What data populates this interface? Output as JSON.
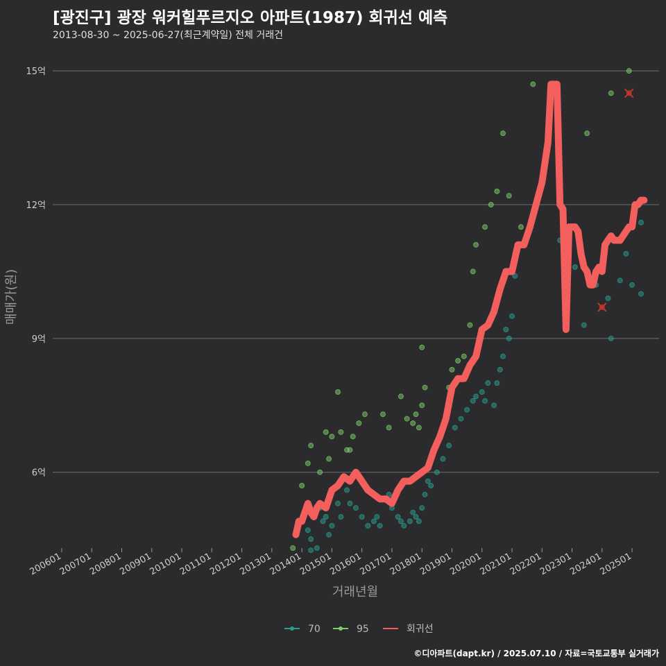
{
  "header": {
    "title": "[광진구] 광장 워커힐푸르지오 아파트(1987) 회귀선 예측",
    "subtitle": "2013-08-30 ~ 2025-06-27(최근계약일) 전체 거래건"
  },
  "footer": {
    "credit": "©디아파트(dapt.kr) / 2025.07.10 / 자료=국토교통부 실거래가"
  },
  "colors": {
    "background": "#2b2a2c",
    "grid": "#707070",
    "series_70": "#2a9d8f",
    "series_95": "#7ccd6a",
    "regression": "#f25f5c",
    "highlight": "#c0392b"
  },
  "chart_data": {
    "type": "scatter",
    "xlabel": "거래년월",
    "ylabel": "매매가(원)",
    "x_unit": "year",
    "xlim": [
      2005.7,
      2025.9
    ],
    "ylim": [
      4.3,
      15.5
    ],
    "x_ticks": [
      {
        "label": "200601",
        "value": 2006.0
      },
      {
        "label": "200701",
        "value": 2007.0
      },
      {
        "label": "200801",
        "value": 2008.0
      },
      {
        "label": "200901",
        "value": 2009.0
      },
      {
        "label": "201001",
        "value": 2010.0
      },
      {
        "label": "201101",
        "value": 2011.0
      },
      {
        "label": "201201",
        "value": 2012.0
      },
      {
        "label": "201301",
        "value": 2013.0
      },
      {
        "label": "201401",
        "value": 2014.0
      },
      {
        "label": "201501",
        "value": 2015.0
      },
      {
        "label": "201601",
        "value": 2016.0
      },
      {
        "label": "201701",
        "value": 2017.0
      },
      {
        "label": "201801",
        "value": 2018.0
      },
      {
        "label": "201901",
        "value": 2019.0
      },
      {
        "label": "202001",
        "value": 2020.0
      },
      {
        "label": "202101",
        "value": 2021.0
      },
      {
        "label": "202201",
        "value": 2022.0
      },
      {
        "label": "202301",
        "value": 2023.0
      },
      {
        "label": "202401",
        "value": 2024.0
      },
      {
        "label": "202501",
        "value": 2025.0
      }
    ],
    "y_ticks": [
      {
        "label": "6억",
        "value": 6
      },
      {
        "label": "9억",
        "value": 9
      },
      {
        "label": "12억",
        "value": 12
      },
      {
        "label": "15억",
        "value": 15
      }
    ],
    "grid": "horizontal",
    "legend_position": "bottom",
    "legend": [
      "70",
      "95",
      "회귀선"
    ],
    "series": [
      {
        "name": "70",
        "kind": "points",
        "points": [
          [
            2013.9,
            4.9
          ],
          [
            2014.2,
            4.7
          ],
          [
            2014.3,
            4.5
          ],
          [
            2014.3,
            4.25
          ],
          [
            2014.5,
            4.3
          ],
          [
            2014.6,
            5.2
          ],
          [
            2014.7,
            4.9
          ],
          [
            2014.8,
            5.0
          ],
          [
            2014.9,
            4.6
          ],
          [
            2015.0,
            4.8
          ],
          [
            2015.2,
            5.3
          ],
          [
            2015.3,
            5.0
          ],
          [
            2015.5,
            5.6
          ],
          [
            2015.6,
            5.3
          ],
          [
            2015.8,
            5.2
          ],
          [
            2016.0,
            5.0
          ],
          [
            2016.2,
            4.8
          ],
          [
            2016.4,
            4.9
          ],
          [
            2016.5,
            5.0
          ],
          [
            2016.6,
            4.8
          ],
          [
            2016.9,
            5.5
          ],
          [
            2017.0,
            5.2
          ],
          [
            2017.2,
            5.0
          ],
          [
            2017.3,
            4.9
          ],
          [
            2017.4,
            4.8
          ],
          [
            2017.6,
            4.9
          ],
          [
            2017.7,
            5.1
          ],
          [
            2017.8,
            5.0
          ],
          [
            2017.9,
            4.9
          ],
          [
            2018.0,
            5.2
          ],
          [
            2018.1,
            5.5
          ],
          [
            2018.2,
            5.8
          ],
          [
            2018.3,
            5.7
          ],
          [
            2018.5,
            6.0
          ],
          [
            2018.7,
            6.3
          ],
          [
            2018.9,
            6.6
          ],
          [
            2019.1,
            7.0
          ],
          [
            2019.3,
            7.2
          ],
          [
            2019.5,
            7.4
          ],
          [
            2019.7,
            7.6
          ],
          [
            2019.8,
            7.7
          ],
          [
            2020.0,
            7.8
          ],
          [
            2020.1,
            7.6
          ],
          [
            2020.2,
            8.0
          ],
          [
            2020.4,
            7.5
          ],
          [
            2020.5,
            8.0
          ],
          [
            2020.6,
            8.3
          ],
          [
            2020.7,
            8.6
          ],
          [
            2020.8,
            9.2
          ],
          [
            2020.9,
            9.0
          ],
          [
            2021.0,
            9.5
          ],
          [
            2021.1,
            10.4
          ],
          [
            2022.6,
            11.2
          ],
          [
            2023.1,
            10.6
          ],
          [
            2023.4,
            9.3
          ],
          [
            2023.8,
            10.2
          ],
          [
            2024.2,
            9.9
          ],
          [
            2024.3,
            9.0
          ],
          [
            2024.6,
            10.3
          ],
          [
            2024.8,
            10.9
          ],
          [
            2025.0,
            10.2
          ],
          [
            2025.3,
            10.0
          ],
          [
            2025.3,
            11.6
          ]
        ]
      },
      {
        "name": "95",
        "kind": "points",
        "points": [
          [
            2013.7,
            4.3
          ],
          [
            2014.0,
            5.7
          ],
          [
            2014.2,
            6.2
          ],
          [
            2014.3,
            6.6
          ],
          [
            2014.6,
            6.0
          ],
          [
            2014.8,
            6.9
          ],
          [
            2014.9,
            6.3
          ],
          [
            2015.0,
            6.8
          ],
          [
            2015.2,
            7.8
          ],
          [
            2015.3,
            6.9
          ],
          [
            2015.5,
            6.5
          ],
          [
            2015.6,
            6.5
          ],
          [
            2015.7,
            6.8
          ],
          [
            2015.9,
            7.1
          ],
          [
            2016.1,
            7.3
          ],
          [
            2016.7,
            7.3
          ],
          [
            2016.9,
            7.0
          ],
          [
            2017.3,
            7.7
          ],
          [
            2017.5,
            7.2
          ],
          [
            2017.7,
            7.1
          ],
          [
            2017.8,
            7.3
          ],
          [
            2017.9,
            7.0
          ],
          [
            2018.0,
            7.5
          ],
          [
            2018.0,
            8.8
          ],
          [
            2018.1,
            7.9
          ],
          [
            2018.9,
            7.9
          ],
          [
            2019.0,
            8.3
          ],
          [
            2019.2,
            8.5
          ],
          [
            2019.4,
            8.6
          ],
          [
            2019.6,
            9.3
          ],
          [
            2019.7,
            10.5
          ],
          [
            2019.8,
            11.1
          ],
          [
            2020.1,
            11.5
          ],
          [
            2020.3,
            12.0
          ],
          [
            2020.5,
            12.3
          ],
          [
            2020.7,
            13.6
          ],
          [
            2020.9,
            12.2
          ],
          [
            2021.3,
            11.5
          ],
          [
            2021.7,
            14.7
          ],
          [
            2023.5,
            13.6
          ],
          [
            2024.3,
            14.5
          ],
          [
            2024.9,
            15.0
          ]
        ]
      },
      {
        "name": "회귀선",
        "kind": "line",
        "points": [
          [
            2013.8,
            4.6
          ],
          [
            2013.9,
            4.9
          ],
          [
            2014.0,
            4.9
          ],
          [
            2014.1,
            5.1
          ],
          [
            2014.2,
            5.3
          ],
          [
            2014.3,
            5.1
          ],
          [
            2014.4,
            5.0
          ],
          [
            2014.5,
            5.2
          ],
          [
            2014.6,
            5.3
          ],
          [
            2014.8,
            5.2
          ],
          [
            2015.0,
            5.6
          ],
          [
            2015.2,
            5.7
          ],
          [
            2015.4,
            5.9
          ],
          [
            2015.6,
            5.8
          ],
          [
            2015.8,
            6.0
          ],
          [
            2016.0,
            5.8
          ],
          [
            2016.2,
            5.6
          ],
          [
            2016.4,
            5.5
          ],
          [
            2016.6,
            5.4
          ],
          [
            2016.8,
            5.4
          ],
          [
            2017.0,
            5.3
          ],
          [
            2017.2,
            5.6
          ],
          [
            2017.4,
            5.8
          ],
          [
            2017.6,
            5.8
          ],
          [
            2017.8,
            5.9
          ],
          [
            2018.0,
            6.0
          ],
          [
            2018.2,
            6.1
          ],
          [
            2018.4,
            6.5
          ],
          [
            2018.6,
            6.8
          ],
          [
            2018.8,
            7.2
          ],
          [
            2019.0,
            7.9
          ],
          [
            2019.2,
            8.1
          ],
          [
            2019.4,
            8.1
          ],
          [
            2019.6,
            8.4
          ],
          [
            2019.8,
            8.6
          ],
          [
            2020.0,
            9.2
          ],
          [
            2020.2,
            9.3
          ],
          [
            2020.4,
            9.6
          ],
          [
            2020.6,
            10.1
          ],
          [
            2020.8,
            10.5
          ],
          [
            2021.0,
            10.5
          ],
          [
            2021.2,
            11.1
          ],
          [
            2021.4,
            11.1
          ],
          [
            2021.6,
            11.5
          ],
          [
            2021.8,
            12.0
          ],
          [
            2022.0,
            12.5
          ],
          [
            2022.2,
            13.4
          ],
          [
            2022.3,
            14.7
          ],
          [
            2022.4,
            14.7
          ],
          [
            2022.5,
            14.7
          ],
          [
            2022.6,
            12.0
          ],
          [
            2022.7,
            11.9
          ],
          [
            2022.8,
            9.2
          ],
          [
            2022.9,
            11.5
          ],
          [
            2023.0,
            11.5
          ],
          [
            2023.1,
            11.5
          ],
          [
            2023.2,
            11.4
          ],
          [
            2023.3,
            10.9
          ],
          [
            2023.4,
            10.6
          ],
          [
            2023.5,
            10.5
          ],
          [
            2023.6,
            10.2
          ],
          [
            2023.7,
            10.2
          ],
          [
            2023.8,
            10.5
          ],
          [
            2023.9,
            10.6
          ],
          [
            2024.0,
            10.5
          ],
          [
            2024.1,
            11.1
          ],
          [
            2024.2,
            11.2
          ],
          [
            2024.3,
            11.3
          ],
          [
            2024.4,
            11.2
          ],
          [
            2024.5,
            11.2
          ],
          [
            2024.6,
            11.2
          ],
          [
            2024.7,
            11.3
          ],
          [
            2024.8,
            11.4
          ],
          [
            2024.9,
            11.5
          ],
          [
            2025.0,
            11.5
          ],
          [
            2025.1,
            12.0
          ],
          [
            2025.2,
            12.0
          ],
          [
            2025.3,
            12.1
          ],
          [
            2025.4,
            12.1
          ]
        ]
      }
    ],
    "highlights": [
      {
        "x": 2024.0,
        "y": 9.7
      },
      {
        "x": 2024.9,
        "y": 14.5
      }
    ]
  }
}
